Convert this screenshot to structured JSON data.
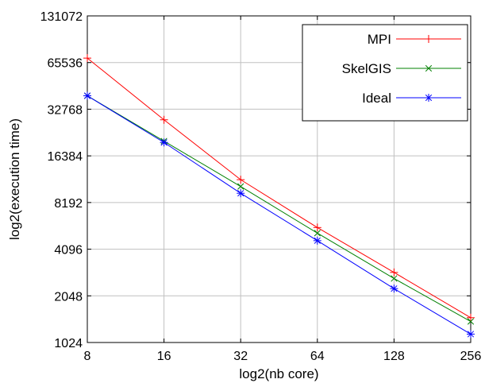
{
  "chart_data": {
    "type": "line",
    "title": "",
    "xlabel": "log2(nb core)",
    "ylabel": "log2(execution time)",
    "x_scale": "log2",
    "y_scale": "log2",
    "x": [
      8,
      16,
      32,
      64,
      128,
      256
    ],
    "xlim": [
      8,
      256
    ],
    "ylim": [
      1024,
      131072
    ],
    "x_ticks": [
      "8",
      "16",
      "32",
      "64",
      "128",
      "256"
    ],
    "y_ticks": [
      "1024",
      "2048",
      "4096",
      "8192",
      "16384",
      "32768",
      "65536",
      "131072"
    ],
    "grid": true,
    "legend_position": "top-right",
    "series": [
      {
        "name": "MPI",
        "color": "#ff0000",
        "marker": "plus",
        "values": [
          70000,
          28000,
          11500,
          5650,
          2900,
          1480
        ]
      },
      {
        "name": "SkelGIS",
        "color": "#008000",
        "marker": "x",
        "values": [
          40000,
          20400,
          10400,
          5200,
          2650,
          1400
        ]
      },
      {
        "name": "Ideal",
        "color": "#0000ff",
        "marker": "star",
        "values": [
          40000,
          20000,
          9400,
          4650,
          2280,
          1160
        ]
      }
    ]
  }
}
